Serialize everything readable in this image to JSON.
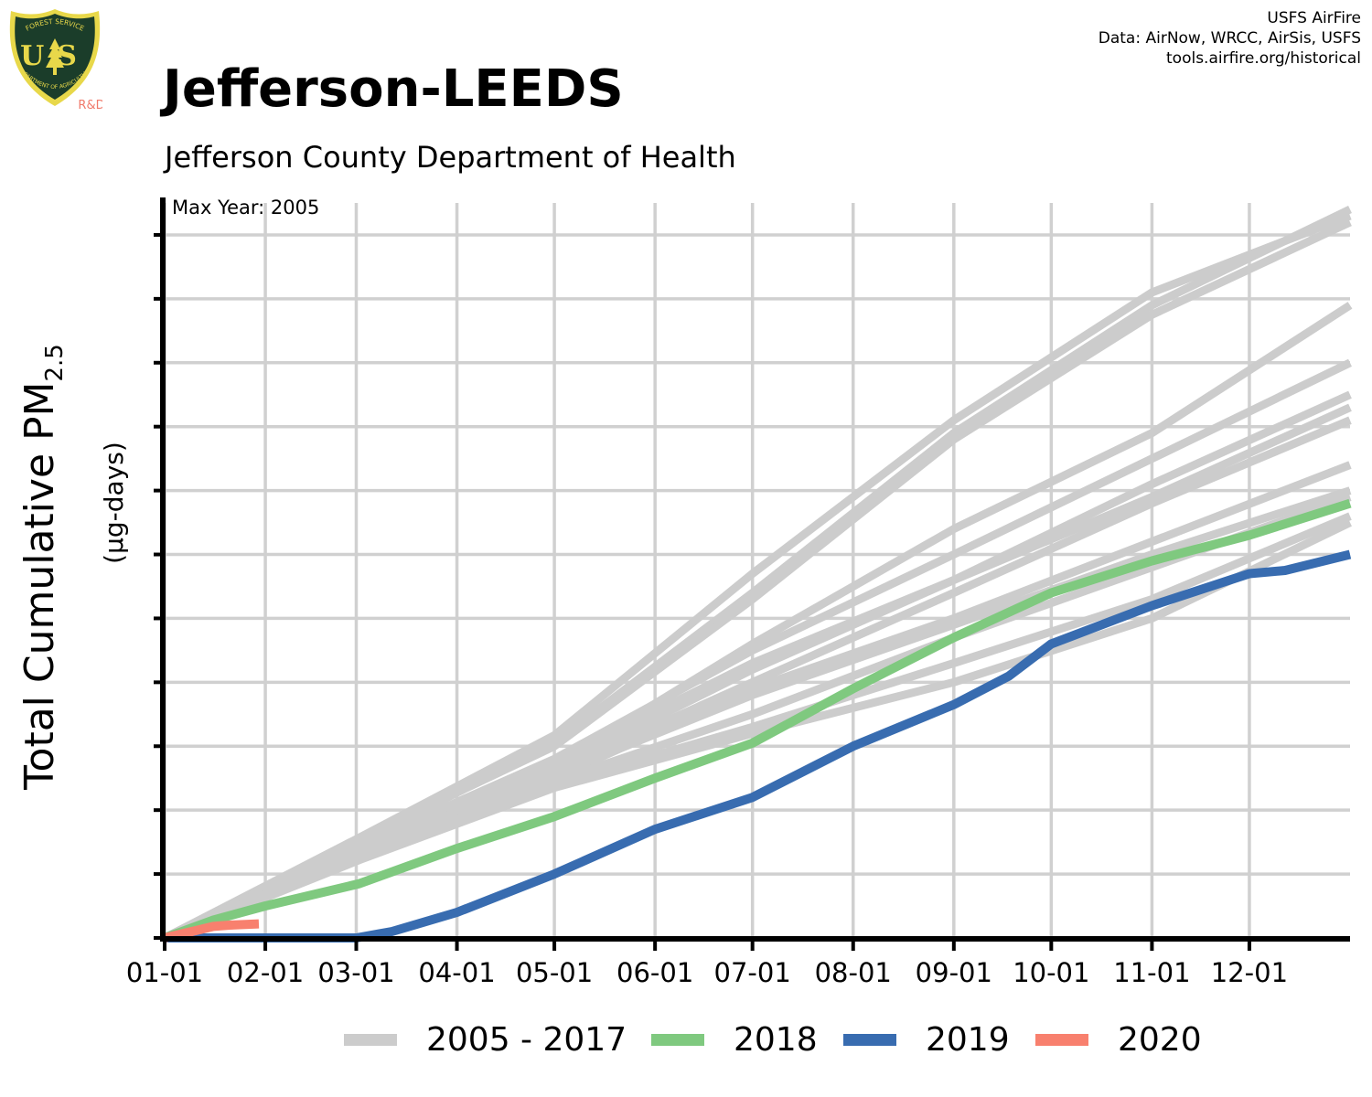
{
  "header": {
    "title": "Jefferson-LEEDS",
    "subtitle": "Jefferson County Department of Health",
    "credits": [
      "USFS AirFire",
      "Data: AirNow, WRCC, AirSis, USFS",
      "tools.airfire.org/historical"
    ]
  },
  "logo": {
    "top_text": "FOREST SERVICE",
    "letters": "US",
    "bottom_text": "DEPARTMENT OF AGRICULTURE",
    "badge": "R&D",
    "colors": {
      "shield": "#1b3d2a",
      "trim": "#e8d84a",
      "badge": "#f07a6b"
    }
  },
  "annotation": {
    "max_year": "Max Year: 2005"
  },
  "axes": {
    "ylabel_main": "Total Cumulative PM",
    "ylabel_sub": "2.5",
    "ylabel_unit": "(µg-days)"
  },
  "legend": [
    {
      "label": "2005 - 2017",
      "color": "#cccccc"
    },
    {
      "label": "2018",
      "color": "#7fc97f"
    },
    {
      "label": "2019",
      "color": "#386cb0"
    },
    {
      "label": "2020",
      "color": "#f8806e"
    }
  ],
  "chart_data": {
    "type": "line",
    "x_ticks": [
      "01-01",
      "02-01",
      "03-01",
      "04-01",
      "05-01",
      "06-01",
      "07-01",
      "08-01",
      "09-01",
      "10-01",
      "11-01",
      "12-01"
    ],
    "x_tick_days": [
      0,
      31,
      59,
      90,
      120,
      151,
      181,
      212,
      243,
      273,
      304,
      334
    ],
    "xlim": [
      0,
      365
    ],
    "ylim": [
      0,
      1150
    ],
    "y_gridlines": [
      0,
      100,
      200,
      300,
      400,
      500,
      600,
      700,
      800,
      900,
      1000,
      1100
    ],
    "y_tick_labels_shown": false,
    "grid": true,
    "legend_position": "bottom",
    "series": [
      {
        "name": "2005 - 2017",
        "color": "#cccccc",
        "days": [
          0,
          60,
          120,
          181,
          243,
          304,
          365
        ],
        "values": [
          0,
          157,
          317,
          570,
          810,
          1010,
          1130
        ]
      },
      {
        "name": "2005 - 2017",
        "color": "#cccccc",
        "days": [
          0,
          60,
          120,
          181,
          243,
          304,
          365
        ],
        "values": [
          0,
          150,
          305,
          540,
          790,
          990,
          1140
        ]
      },
      {
        "name": "2005 - 2017",
        "color": "#cccccc",
        "days": [
          0,
          60,
          120,
          181,
          243,
          304,
          365
        ],
        "values": [
          0,
          155,
          300,
          530,
          780,
          975,
          1120
        ]
      },
      {
        "name": "2005 - 2017",
        "color": "#cccccc",
        "days": [
          0,
          60,
          120,
          181,
          243,
          304,
          365
        ],
        "values": [
          0,
          140,
          270,
          460,
          640,
          790,
          990
        ]
      },
      {
        "name": "2005 - 2017",
        "color": "#cccccc",
        "days": [
          0,
          60,
          120,
          181,
          243,
          304,
          365
        ],
        "values": [
          0,
          145,
          280,
          450,
          600,
          750,
          900
        ]
      },
      {
        "name": "2005 - 2017",
        "color": "#cccccc",
        "days": [
          0,
          60,
          120,
          181,
          243,
          304,
          365
        ],
        "values": [
          0,
          138,
          265,
          420,
          560,
          710,
          850
        ]
      },
      {
        "name": "2005 - 2017",
        "color": "#cccccc",
        "days": [
          0,
          60,
          120,
          181,
          243,
          304,
          365
        ],
        "values": [
          0,
          142,
          275,
          430,
          560,
          690,
          830
        ]
      },
      {
        "name": "2005 - 2017",
        "color": "#cccccc",
        "days": [
          0,
          60,
          120,
          181,
          243,
          304,
          365
        ],
        "values": [
          0,
          135,
          260,
          400,
          540,
          680,
          810
        ]
      },
      {
        "name": "2005 - 2017",
        "color": "#cccccc",
        "days": [
          0,
          60,
          120,
          181,
          243,
          304,
          365
        ],
        "values": [
          0,
          130,
          250,
          390,
          500,
          620,
          740
        ]
      },
      {
        "name": "2005 - 2017",
        "color": "#cccccc",
        "days": [
          0,
          60,
          120,
          181,
          243,
          304,
          365
        ],
        "values": [
          0,
          133,
          255,
          380,
          490,
          600,
          700
        ]
      },
      {
        "name": "2005 - 2017",
        "color": "#cccccc",
        "days": [
          0,
          60,
          120,
          181,
          243,
          304,
          365
        ],
        "values": [
          0,
          128,
          245,
          350,
          470,
          580,
          690
        ]
      },
      {
        "name": "2005 - 2017",
        "color": "#cccccc",
        "days": [
          0,
          60,
          120,
          181,
          243,
          304,
          365
        ],
        "values": [
          0,
          125,
          240,
          330,
          430,
          530,
          660
        ]
      },
      {
        "name": "2005 - 2017",
        "color": "#cccccc",
        "days": [
          0,
          60,
          120,
          181,
          243,
          304,
          365
        ],
        "values": [
          0,
          122,
          235,
          320,
          400,
          500,
          650
        ]
      },
      {
        "name": "2018",
        "color": "#7fc97f",
        "days": [
          0,
          15,
          31,
          60,
          90,
          120,
          151,
          181,
          212,
          243,
          273,
          304,
          334,
          365
        ],
        "values": [
          0,
          28,
          50,
          85,
          140,
          190,
          250,
          305,
          390,
          470,
          540,
          590,
          630,
          680
        ]
      },
      {
        "name": "2019",
        "color": "#386cb0",
        "days": [
          0,
          31,
          59,
          70,
          90,
          120,
          151,
          181,
          212,
          243,
          260,
          273,
          304,
          334,
          345,
          365
        ],
        "values": [
          0,
          0,
          0,
          10,
          40,
          100,
          170,
          220,
          300,
          365,
          410,
          460,
          520,
          570,
          575,
          600
        ]
      },
      {
        "name": "2020",
        "color": "#f8806e",
        "days": [
          0,
          5,
          10,
          15,
          20,
          29
        ],
        "values": [
          0,
          6,
          12,
          18,
          20,
          22
        ]
      }
    ]
  }
}
